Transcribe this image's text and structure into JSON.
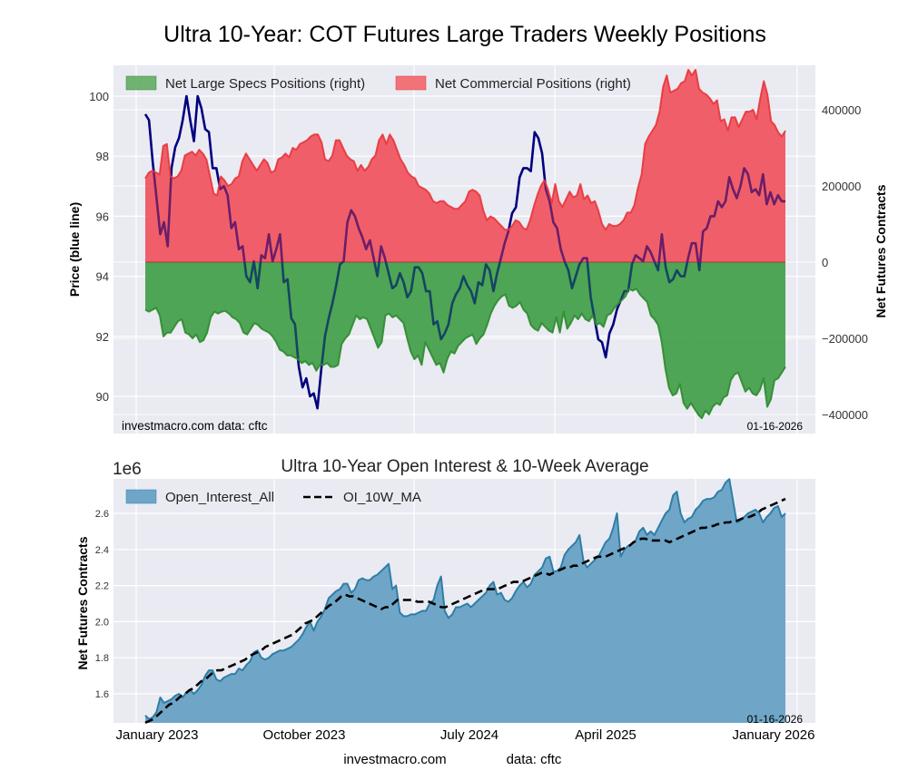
{
  "chart_data": [
    {
      "type": "area",
      "title": "Ultra 10-Year: COT Futures Large Traders Weekly Positions",
      "ylabel": "Price (blue line)",
      "ylabel_right": "Net Futures Contracts",
      "ylim": [
        89.5,
        100.8
      ],
      "ylim_right": [
        -410000,
        520000
      ],
      "yticks": [
        "90",
        "92",
        "94",
        "96",
        "98",
        "100"
      ],
      "yticks_right": [
        "-400000",
        "-200000",
        "0",
        "200000",
        "400000"
      ],
      "grid": true,
      "legend": {
        "placement": "top-left",
        "entries": [
          "Net Large Specs Positions (right)",
          "Net Commercial Positions (right)"
        ]
      },
      "annotations": {
        "source": "investmacro.com   data: cftc",
        "date": "01-16-2026"
      },
      "x_range": [
        "2022-12",
        "2026-01-16"
      ],
      "x_index_range": [
        0,
        160
      ],
      "series": [
        {
          "name": "Price (blue line)",
          "axis": "left",
          "color": "#00007f",
          "values": [
            99.4,
            99.2,
            97.8,
            96.6,
            95.4,
            95.8,
            95.0,
            97.6,
            98.3,
            98.6,
            99.2,
            100.0,
            99.2,
            98.5,
            100.0,
            99.6,
            98.9,
            98.8,
            97.6,
            97.6,
            96.9,
            97.0,
            96.7,
            95.6,
            95.8,
            94.9,
            95.0,
            94.0,
            93.8,
            94.5,
            93.6,
            94.7,
            94.6,
            95.4,
            94.5,
            94.9,
            95.4,
            93.8,
            93.9,
            92.6,
            92.4,
            91.0,
            90.3,
            90.6,
            90.0,
            90.1,
            89.6,
            90.9,
            92.0,
            92.6,
            93.1,
            93.7,
            94.4,
            94.5,
            95.8,
            96.2,
            96.0,
            95.6,
            95.3,
            94.9,
            95.2,
            94.6,
            94.0,
            95.0,
            94.6,
            94.1,
            93.6,
            93.7,
            94.1,
            93.8,
            93.3,
            93.5,
            94.3,
            94.3,
            94.1,
            93.5,
            93.5,
            92.4,
            92.5,
            91.9,
            92.1,
            92.4,
            93.1,
            93.4,
            93.6,
            94.0,
            93.7,
            93.5,
            93.1,
            93.8,
            93.7,
            94.4,
            94.2,
            93.5,
            94.1,
            94.6,
            95.1,
            95.5,
            96.1,
            96.3,
            97.3,
            97.6,
            97.6,
            97.5,
            98.8,
            98.6,
            98.1,
            96.9,
            96.5,
            95.8,
            95.6,
            94.9,
            94.5,
            94.2,
            93.6,
            94.0,
            94.4,
            94.6,
            94.6,
            93.3,
            92.6,
            91.9,
            91.8,
            91.3,
            92.1,
            92.4,
            92.9,
            93.2,
            93.5,
            93.5,
            94.4,
            94.7,
            94.6,
            94.5,
            95.0,
            94.8,
            94.5,
            94.2,
            95.4,
            94.3,
            93.8,
            93.9,
            94.2,
            94.0,
            94.0,
            94.6,
            95.1,
            95.1,
            94.2,
            95.5,
            95.6,
            96.0,
            96.0,
            96.5,
            96.3,
            96.5,
            97.3,
            96.9,
            96.6,
            97.0,
            97.6,
            97.4,
            96.8,
            96.9,
            96.7,
            97.4,
            96.4,
            96.8,
            96.4,
            96.7,
            96.5,
            96.5
          ]
        },
        {
          "name": "Net Large Specs Positions (right)",
          "axis": "right",
          "color": "#2e8b2e",
          "fill": "#5aa95a",
          "values": [
            -125000,
            -130000,
            -125000,
            -120000,
            -140000,
            -195000,
            -185000,
            -185000,
            -170000,
            -155000,
            -150000,
            -185000,
            -190000,
            -200000,
            -190000,
            -210000,
            -205000,
            -185000,
            -145000,
            -130000,
            -135000,
            -130000,
            -128000,
            -135000,
            -145000,
            -150000,
            -160000,
            -185000,
            -190000,
            -175000,
            -160000,
            -165000,
            -175000,
            -180000,
            -185000,
            -195000,
            -210000,
            -230000,
            -235000,
            -245000,
            -245000,
            -250000,
            -255000,
            -265000,
            -260000,
            -270000,
            -265000,
            -285000,
            -270000,
            -270000,
            -265000,
            -275000,
            -275000,
            -270000,
            -215000,
            -200000,
            -190000,
            -165000,
            -140000,
            -150000,
            -145000,
            -150000,
            -175000,
            -200000,
            -225000,
            -210000,
            -140000,
            -135000,
            -145000,
            -140000,
            -150000,
            -160000,
            -200000,
            -235000,
            -255000,
            -245000,
            -270000,
            -210000,
            -230000,
            -250000,
            -270000,
            -265000,
            -290000,
            -255000,
            -235000,
            -240000,
            -220000,
            -210000,
            -200000,
            -195000,
            -190000,
            -215000,
            -200000,
            -190000,
            -165000,
            -135000,
            -115000,
            -100000,
            -90000,
            -85000,
            -115000,
            -120000,
            -115000,
            -105000,
            -125000,
            -135000,
            -165000,
            -175000,
            -180000,
            -160000,
            -170000,
            -180000,
            -185000,
            -145000,
            -185000,
            -130000,
            -175000,
            -160000,
            -140000,
            -150000,
            -135000,
            -150000,
            -155000,
            -140000,
            -165000,
            -160000,
            -170000,
            -140000,
            -135000,
            -120000,
            -110000,
            -100000,
            -90000,
            -70000,
            -75000,
            -70000,
            -85000,
            -95000,
            -105000,
            -140000,
            -150000,
            -165000,
            -210000,
            -280000,
            -330000,
            -350000,
            -345000,
            -320000,
            -370000,
            -385000,
            -370000,
            -385000,
            -400000,
            -410000,
            -390000,
            -400000,
            -380000,
            -370000,
            -375000,
            -355000,
            -350000,
            -310000,
            -295000,
            -290000,
            -315000,
            -340000,
            -330000,
            -345000,
            -350000,
            -335000,
            -305000,
            -380000,
            -360000,
            -310000,
            -305000,
            -290000,
            -275000
          ]
        },
        {
          "name": "Net Commercial Positions (right)",
          "axis": "right",
          "color": "#e8353a",
          "fill": "#f07378",
          "values": [
            220000,
            235000,
            240000,
            235000,
            230000,
            305000,
            310000,
            225000,
            220000,
            225000,
            240000,
            280000,
            285000,
            290000,
            280000,
            295000,
            285000,
            270000,
            225000,
            180000,
            175000,
            225000,
            215000,
            200000,
            205000,
            220000,
            225000,
            265000,
            285000,
            270000,
            255000,
            240000,
            255000,
            270000,
            260000,
            235000,
            240000,
            270000,
            275000,
            285000,
            275000,
            300000,
            295000,
            310000,
            315000,
            320000,
            330000,
            335000,
            335000,
            315000,
            270000,
            265000,
            280000,
            320000,
            320000,
            300000,
            280000,
            270000,
            265000,
            240000,
            255000,
            240000,
            250000,
            270000,
            280000,
            320000,
            335000,
            310000,
            335000,
            320000,
            295000,
            270000,
            255000,
            235000,
            225000,
            220000,
            200000,
            195000,
            190000,
            180000,
            160000,
            155000,
            160000,
            160000,
            150000,
            145000,
            140000,
            140000,
            150000,
            160000,
            185000,
            190000,
            185000,
            175000,
            135000,
            110000,
            120000,
            115000,
            105000,
            95000,
            85000,
            85000,
            95000,
            110000,
            105000,
            90000,
            85000,
            110000,
            145000,
            175000,
            200000,
            215000,
            190000,
            155000,
            205000,
            160000,
            145000,
            165000,
            185000,
            170000,
            175000,
            205000,
            165000,
            175000,
            155000,
            160000,
            135000,
            100000,
            85000,
            100000,
            95000,
            95000,
            100000,
            110000,
            130000,
            130000,
            150000,
            195000,
            230000,
            310000,
            330000,
            345000,
            360000,
            395000,
            460000,
            490000,
            445000,
            450000,
            455000,
            470000,
            475000,
            505000,
            490000,
            505000,
            455000,
            445000,
            440000,
            430000,
            415000,
            425000,
            370000,
            375000,
            345000,
            380000,
            380000,
            355000,
            375000,
            395000,
            395000,
            400000,
            375000,
            430000,
            475000,
            440000,
            370000,
            360000,
            340000,
            330000,
            345000
          ]
        }
      ]
    },
    {
      "type": "area",
      "title": "Ultra 10-Year Open Interest & 10-Week Average",
      "ylabel": "Net Futures Contracts",
      "y_multiplier": "1e6",
      "ylim": [
        1.42,
        2.79
      ],
      "yticks": [
        "1.6",
        "1.8",
        "2.0",
        "2.2",
        "2.4",
        "2.6"
      ],
      "xticks": [
        "January 2023",
        "October 2023",
        "July 2024",
        "April 2025",
        "January 2026"
      ],
      "grid": true,
      "legend": {
        "placement": "top-left",
        "entries": [
          "Open_Interest_All",
          "OI_10W_MA"
        ]
      },
      "annotations": {
        "date": "01-16-2026"
      },
      "series": [
        {
          "name": "Open_Interest_All",
          "color": "#2e7ea6",
          "fill": "#6fa6c8",
          "values": [
            1.48,
            1.46,
            1.47,
            1.5,
            1.58,
            1.55,
            1.56,
            1.57,
            1.59,
            1.6,
            1.58,
            1.61,
            1.62,
            1.6,
            1.62,
            1.65,
            1.7,
            1.73,
            1.73,
            1.68,
            1.67,
            1.69,
            1.7,
            1.71,
            1.71,
            1.74,
            1.73,
            1.76,
            1.78,
            1.83,
            1.84,
            1.8,
            1.79,
            1.8,
            1.82,
            1.83,
            1.84,
            1.84,
            1.85,
            1.86,
            1.88,
            1.9,
            1.93,
            1.97,
            2.0,
            1.95,
            2.0,
            2.03,
            2.07,
            2.13,
            2.15,
            2.17,
            2.18,
            2.21,
            2.21,
            2.16,
            2.18,
            2.23,
            2.24,
            2.23,
            2.23,
            2.25,
            2.26,
            2.28,
            2.3,
            2.32,
            2.18,
            2.2,
            2.05,
            2.03,
            2.03,
            2.04,
            2.04,
            2.05,
            2.06,
            2.06,
            2.1,
            2.12,
            2.2,
            2.25,
            2.06,
            2.02,
            2.04,
            2.08,
            2.08,
            2.09,
            2.1,
            2.08,
            2.1,
            2.12,
            2.14,
            2.16,
            2.2,
            2.22,
            2.15,
            2.16,
            2.12,
            2.11,
            2.13,
            2.17,
            2.2,
            2.22,
            2.19,
            2.21,
            2.26,
            2.28,
            2.3,
            2.35,
            2.36,
            2.28,
            2.28,
            2.3,
            2.37,
            2.4,
            2.42,
            2.44,
            2.48,
            2.34,
            2.3,
            2.32,
            2.34,
            2.36,
            2.4,
            2.44,
            2.46,
            2.52,
            2.6,
            2.36,
            2.4,
            2.42,
            2.43,
            2.45,
            2.5,
            2.52,
            2.48,
            2.5,
            2.48,
            2.52,
            2.56,
            2.6,
            2.62,
            2.7,
            2.72,
            2.6,
            2.55,
            2.57,
            2.58,
            2.62,
            2.64,
            2.67,
            2.68,
            2.68,
            2.69,
            2.72,
            2.73,
            2.77,
            2.8,
            2.67,
            2.55,
            2.56,
            2.58,
            2.6,
            2.61,
            2.62,
            2.6,
            2.55,
            2.58,
            2.6,
            2.63,
            2.64,
            2.58,
            2.6
          ]
        },
        {
          "name": "OI_10W_MA",
          "color": "#000000",
          "style": "dashed",
          "values": [
            1.44,
            1.45,
            1.46,
            1.48,
            1.5,
            1.52,
            1.54,
            1.55,
            1.57,
            1.59,
            1.6,
            1.62,
            1.63,
            1.65,
            1.67,
            1.68,
            1.7,
            1.72,
            1.73,
            1.73,
            1.74,
            1.75,
            1.76,
            1.77,
            1.78,
            1.79,
            1.81,
            1.82,
            1.83,
            1.84,
            1.86,
            1.87,
            1.88,
            1.89,
            1.9,
            1.91,
            1.92,
            1.93,
            1.95,
            1.97,
            1.99,
            2.0,
            2.01,
            2.03,
            2.05,
            2.07,
            2.09,
            2.1,
            2.12,
            2.14,
            2.15,
            2.14,
            2.14,
            2.13,
            2.12,
            2.11,
            2.1,
            2.09,
            2.08,
            2.07,
            2.08,
            2.08,
            2.1,
            2.12,
            2.12,
            2.12,
            2.12,
            2.12,
            2.11,
            2.11,
            2.11,
            2.11,
            2.1,
            2.09,
            2.08,
            2.08,
            2.09,
            2.1,
            2.11,
            2.12,
            2.13,
            2.14,
            2.15,
            2.16,
            2.17,
            2.18,
            2.18,
            2.18,
            2.18,
            2.19,
            2.2,
            2.21,
            2.22,
            2.22,
            2.22,
            2.23,
            2.24,
            2.25,
            2.26,
            2.27,
            2.27,
            2.26,
            2.27,
            2.28,
            2.29,
            2.3,
            2.3,
            2.31,
            2.31,
            2.32,
            2.33,
            2.34,
            2.35,
            2.36,
            2.36,
            2.36,
            2.37,
            2.38,
            2.39,
            2.4,
            2.41,
            2.42,
            2.44,
            2.45,
            2.46,
            2.46,
            2.45,
            2.45,
            2.45,
            2.45,
            2.45,
            2.44,
            2.45,
            2.46,
            2.47,
            2.48,
            2.49,
            2.5,
            2.51,
            2.52,
            2.52,
            2.53,
            2.53,
            2.54,
            2.54,
            2.55,
            2.55,
            2.56,
            2.56,
            2.57,
            2.58,
            2.58,
            2.59,
            2.6,
            2.62,
            2.63,
            2.64,
            2.65,
            2.66,
            2.67,
            2.68
          ]
        }
      ]
    }
  ],
  "footer": {
    "source": "investmacro.com",
    "data": "data: cftc"
  }
}
